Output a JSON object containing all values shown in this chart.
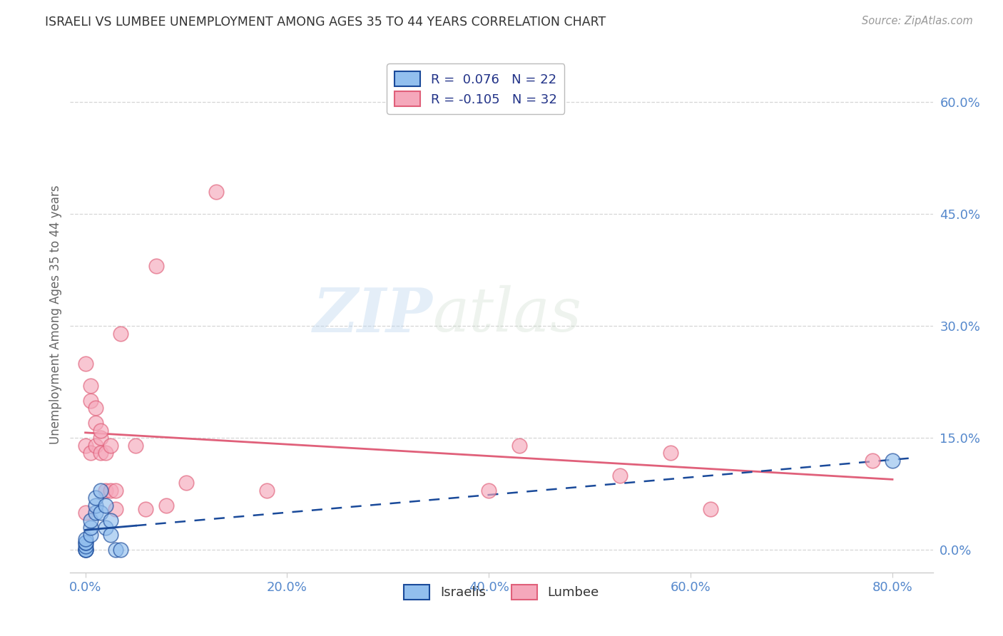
{
  "title": "ISRAELI VS LUMBEE UNEMPLOYMENT AMONG AGES 35 TO 44 YEARS CORRELATION CHART",
  "source": "Source: ZipAtlas.com",
  "xlabel_ticks": [
    "0.0%",
    "20.0%",
    "40.0%",
    "60.0%",
    "80.0%"
  ],
  "xlabel_tick_vals": [
    0.0,
    0.2,
    0.4,
    0.6,
    0.8
  ],
  "ylabel_ticks": [
    "0.0%",
    "15.0%",
    "30.0%",
    "45.0%",
    "60.0%"
  ],
  "ylabel_tick_vals": [
    0.0,
    0.15,
    0.3,
    0.45,
    0.6
  ],
  "ylabel": "Unemployment Among Ages 35 to 44 years",
  "xlim": [
    -0.015,
    0.84
  ],
  "ylim": [
    -0.03,
    0.66
  ],
  "watermark_zip": "ZIP",
  "watermark_atlas": "atlas",
  "legend_r_israeli": "R =  0.076",
  "legend_n_israeli": "N = 22",
  "legend_r_lumbee": "R = -0.105",
  "legend_n_lumbee": "N = 32",
  "israeli_x": [
    0.0,
    0.0,
    0.0,
    0.0,
    0.0,
    0.0,
    0.0,
    0.005,
    0.005,
    0.005,
    0.01,
    0.01,
    0.01,
    0.015,
    0.015,
    0.02,
    0.02,
    0.025,
    0.025,
    0.03,
    0.035,
    0.8
  ],
  "israeli_y": [
    0.0,
    0.0,
    0.0,
    0.005,
    0.01,
    0.01,
    0.015,
    0.02,
    0.03,
    0.04,
    0.05,
    0.06,
    0.07,
    0.05,
    0.08,
    0.03,
    0.06,
    0.02,
    0.04,
    0.0,
    0.0,
    0.12
  ],
  "lumbee_x": [
    0.0,
    0.0,
    0.0,
    0.005,
    0.005,
    0.005,
    0.01,
    0.01,
    0.01,
    0.015,
    0.015,
    0.015,
    0.02,
    0.02,
    0.025,
    0.025,
    0.03,
    0.03,
    0.035,
    0.05,
    0.06,
    0.07,
    0.08,
    0.1,
    0.13,
    0.18,
    0.4,
    0.43,
    0.53,
    0.58,
    0.62,
    0.78
  ],
  "lumbee_y": [
    0.14,
    0.25,
    0.05,
    0.2,
    0.13,
    0.22,
    0.14,
    0.17,
    0.19,
    0.13,
    0.15,
    0.16,
    0.13,
    0.08,
    0.14,
    0.08,
    0.055,
    0.08,
    0.29,
    0.14,
    0.055,
    0.38,
    0.06,
    0.09,
    0.48,
    0.08,
    0.08,
    0.14,
    0.1,
    0.13,
    0.055,
    0.12
  ],
  "israeli_color": "#92bfee",
  "lumbee_color": "#f5a8bb",
  "israeli_line_color": "#1a4a9a",
  "lumbee_line_color": "#e0607a",
  "background_color": "#ffffff",
  "grid_color": "#cccccc",
  "title_color": "#333333",
  "axis_label_color": "#666666",
  "tick_color": "#5588cc"
}
